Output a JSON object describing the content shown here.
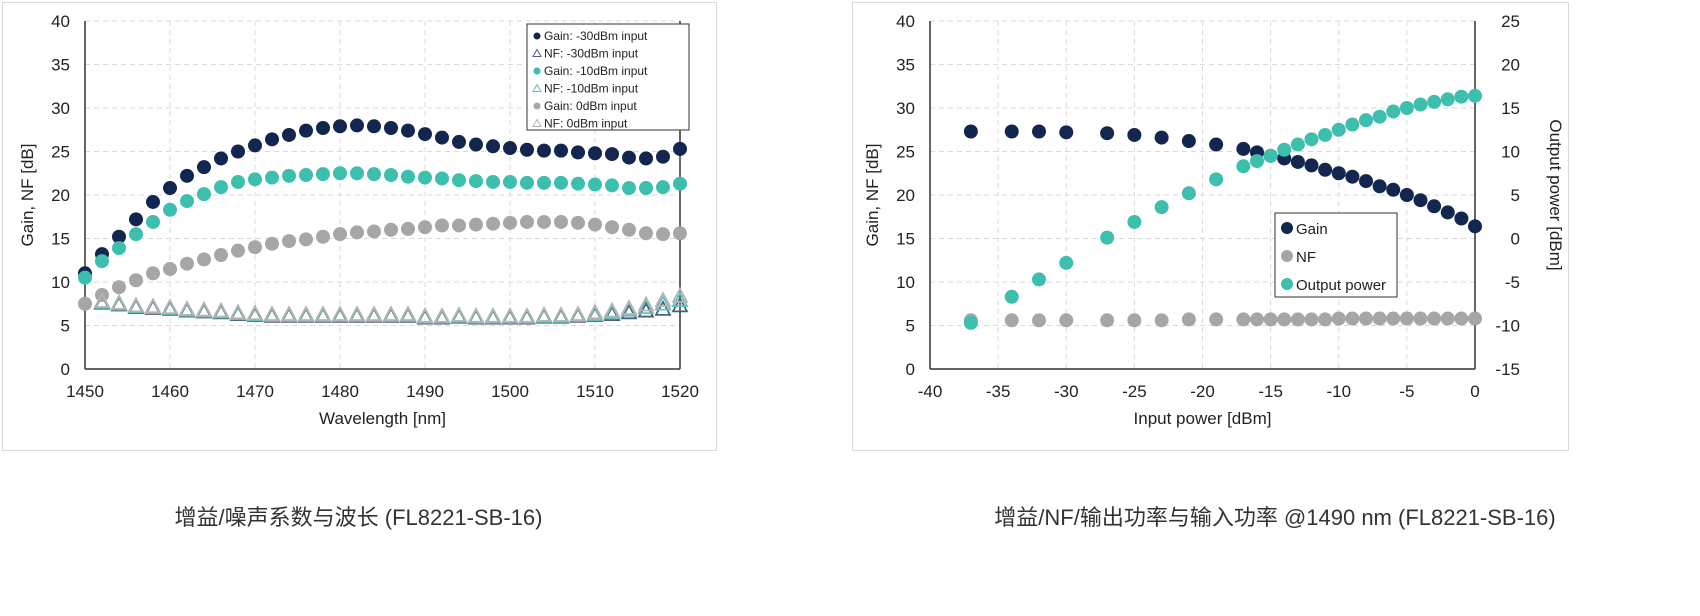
{
  "colors": {
    "gain_30": "#13264f",
    "gain_10": "#3dbfae",
    "gain_0": "#a6a6a6",
    "nf_30": "#4d5f7a",
    "nf_10": "#5fc3b5",
    "nf_0": "#b5b5b5",
    "grid": "#d9d9d9"
  },
  "captions": {
    "left": "增益/噪声系数与波长 (FL8221-SB-16)",
    "right": "增益/NF/输出功率与输入功率 @1490 nm (FL8221-SB-16)"
  },
  "chart_data": [
    {
      "type": "scatter",
      "title": "",
      "xlabel": "Wavelength [nm]",
      "ylabel": "Gain, NF [dB]",
      "xlim": [
        1450,
        1520
      ],
      "ylim": [
        0,
        40
      ],
      "xticks": [
        1450,
        1460,
        1470,
        1480,
        1490,
        1500,
        1510,
        1520
      ],
      "yticks": [
        0,
        5,
        10,
        15,
        20,
        25,
        30,
        35,
        40
      ],
      "grid": true,
      "legend_position": "top-right",
      "x": [
        1450,
        1452,
        1454,
        1456,
        1458,
        1460,
        1462,
        1464,
        1466,
        1468,
        1470,
        1472,
        1474,
        1476,
        1478,
        1480,
        1482,
        1484,
        1486,
        1488,
        1490,
        1492,
        1494,
        1496,
        1498,
        1500,
        1502,
        1504,
        1506,
        1508,
        1510,
        1512,
        1514,
        1516,
        1518,
        1520
      ],
      "series": [
        {
          "name": "Gain: -30dBm input",
          "marker": "circle",
          "color": "#13264f",
          "values": [
            11,
            13.2,
            15.2,
            17.2,
            19.2,
            20.8,
            22.2,
            23.2,
            24.2,
            25,
            25.7,
            26.4,
            26.9,
            27.4,
            27.7,
            27.9,
            28,
            27.9,
            27.7,
            27.4,
            27,
            26.6,
            26.1,
            25.8,
            25.6,
            25.4,
            25.2,
            25.1,
            25.1,
            24.9,
            24.8,
            24.7,
            24.3,
            24.2,
            24.4,
            25.3
          ]
        },
        {
          "name": "NF: -30dBm input",
          "marker": "triangle",
          "color": "#4d5f7a",
          "values": [
            null,
            7.5,
            7.3,
            7.0,
            6.9,
            6.8,
            6.6,
            6.5,
            6.4,
            6.2,
            6.1,
            6.0,
            6.0,
            6.0,
            6.0,
            6.0,
            6.0,
            6.0,
            6.0,
            6.0,
            5.8,
            5.8,
            5.9,
            5.8,
            5.8,
            5.8,
            5.8,
            5.9,
            5.9,
            6.0,
            6.1,
            6.2,
            6.4,
            6.6,
            6.8,
            7.2
          ]
        },
        {
          "name": "Gain: -10dBm input",
          "marker": "circle",
          "color": "#3dbfae",
          "values": [
            10.5,
            12.4,
            13.9,
            15.5,
            16.9,
            18.3,
            19.3,
            20.1,
            20.9,
            21.5,
            21.8,
            22,
            22.2,
            22.3,
            22.4,
            22.5,
            22.5,
            22.4,
            22.3,
            22.1,
            22,
            21.9,
            21.7,
            21.6,
            21.5,
            21.5,
            21.4,
            21.4,
            21.4,
            21.3,
            21.2,
            21.1,
            20.8,
            20.8,
            20.9,
            21.3
          ]
        },
        {
          "name": "NF: -10dBm input",
          "marker": "triangle",
          "color": "#5fc3b5",
          "values": [
            null,
            7.6,
            7.4,
            7.1,
            7.0,
            6.9,
            6.7,
            6.6,
            6.5,
            6.3,
            6.2,
            6.1,
            6.1,
            6.1,
            6.1,
            6.1,
            6.1,
            6.1,
            6.1,
            6.1,
            5.9,
            5.9,
            6.0,
            5.9,
            5.9,
            5.9,
            5.9,
            6.0,
            6.0,
            6.1,
            6.2,
            6.4,
            6.7,
            7.0,
            7.4,
            7.8
          ]
        },
        {
          "name": "Gain: 0dBm input",
          "marker": "circle",
          "color": "#a6a6a6",
          "values": [
            7.5,
            8.5,
            9.4,
            10.2,
            11,
            11.5,
            12.1,
            12.6,
            13.1,
            13.6,
            14,
            14.4,
            14.7,
            14.9,
            15.2,
            15.5,
            15.7,
            15.8,
            16,
            16.1,
            16.3,
            16.5,
            16.5,
            16.6,
            16.7,
            16.8,
            16.9,
            16.9,
            16.9,
            16.8,
            16.6,
            16.3,
            16,
            15.6,
            15.5,
            15.6
          ]
        },
        {
          "name": "NF: 0dBm input",
          "marker": "triangle",
          "color": "#b5b5b5",
          "values": [
            null,
            7.7,
            7.5,
            7.2,
            7.1,
            7.0,
            6.8,
            6.7,
            6.6,
            6.4,
            6.3,
            6.2,
            6.2,
            6.2,
            6.2,
            6.2,
            6.2,
            6.2,
            6.2,
            6.2,
            6.0,
            6.0,
            6.1,
            6.0,
            6.0,
            6.0,
            6.0,
            6.1,
            6.1,
            6.2,
            6.4,
            6.6,
            6.9,
            7.3,
            7.8,
            8.3
          ]
        }
      ]
    },
    {
      "type": "scatter",
      "title": "",
      "xlabel": "Input power [dBm]",
      "ylabel": "Gain, NF [dB]",
      "y2label": "Output power [dBm]",
      "xlim": [
        -40,
        0
      ],
      "ylim": [
        0,
        40
      ],
      "y2lim": [
        -15,
        25
      ],
      "xticks": [
        -40,
        -35,
        -30,
        -25,
        -20,
        -15,
        -10,
        -5,
        0
      ],
      "yticks": [
        0,
        5,
        10,
        15,
        20,
        25,
        30,
        35,
        40
      ],
      "y2ticks": [
        -15,
        -10,
        -5,
        0,
        5,
        10,
        15,
        20,
        25
      ],
      "grid": true,
      "legend_position": "center-right",
      "x": [
        -37,
        -34,
        -32,
        -30,
        -27,
        -25,
        -23,
        -21,
        -19,
        -17,
        -16,
        -15,
        -14,
        -13,
        -12,
        -11,
        -10,
        -9,
        -8,
        -7,
        -6,
        -5,
        -4,
        -3,
        -2,
        -1,
        0
      ],
      "series": [
        {
          "name": "Gain",
          "axis": "left",
          "color": "#13264f",
          "values": [
            27.3,
            27.3,
            27.3,
            27.2,
            27.1,
            26.9,
            26.6,
            26.2,
            25.8,
            25.3,
            24.9,
            24.5,
            24.2,
            23.8,
            23.4,
            22.9,
            22.5,
            22.1,
            21.6,
            21.0,
            20.6,
            20.0,
            19.4,
            18.7,
            18.0,
            17.3,
            16.4
          ]
        },
        {
          "name": "NF",
          "axis": "left",
          "color": "#a6a6a6",
          "values": [
            5.6,
            5.6,
            5.6,
            5.6,
            5.6,
            5.6,
            5.6,
            5.7,
            5.7,
            5.7,
            5.7,
            5.7,
            5.7,
            5.7,
            5.7,
            5.7,
            5.8,
            5.8,
            5.8,
            5.8,
            5.8,
            5.8,
            5.8,
            5.8,
            5.8,
            5.8,
            5.8
          ]
        },
        {
          "name": "Output power",
          "axis": "right",
          "color": "#3dbfae",
          "values": [
            -9.7,
            -6.7,
            -4.7,
            -2.8,
            0.1,
            1.9,
            3.6,
            5.2,
            6.8,
            8.3,
            8.9,
            9.5,
            10.2,
            10.8,
            11.4,
            11.9,
            12.5,
            13.1,
            13.6,
            14.0,
            14.6,
            15.0,
            15.4,
            15.7,
            16.0,
            16.3,
            16.4
          ]
        }
      ]
    }
  ]
}
